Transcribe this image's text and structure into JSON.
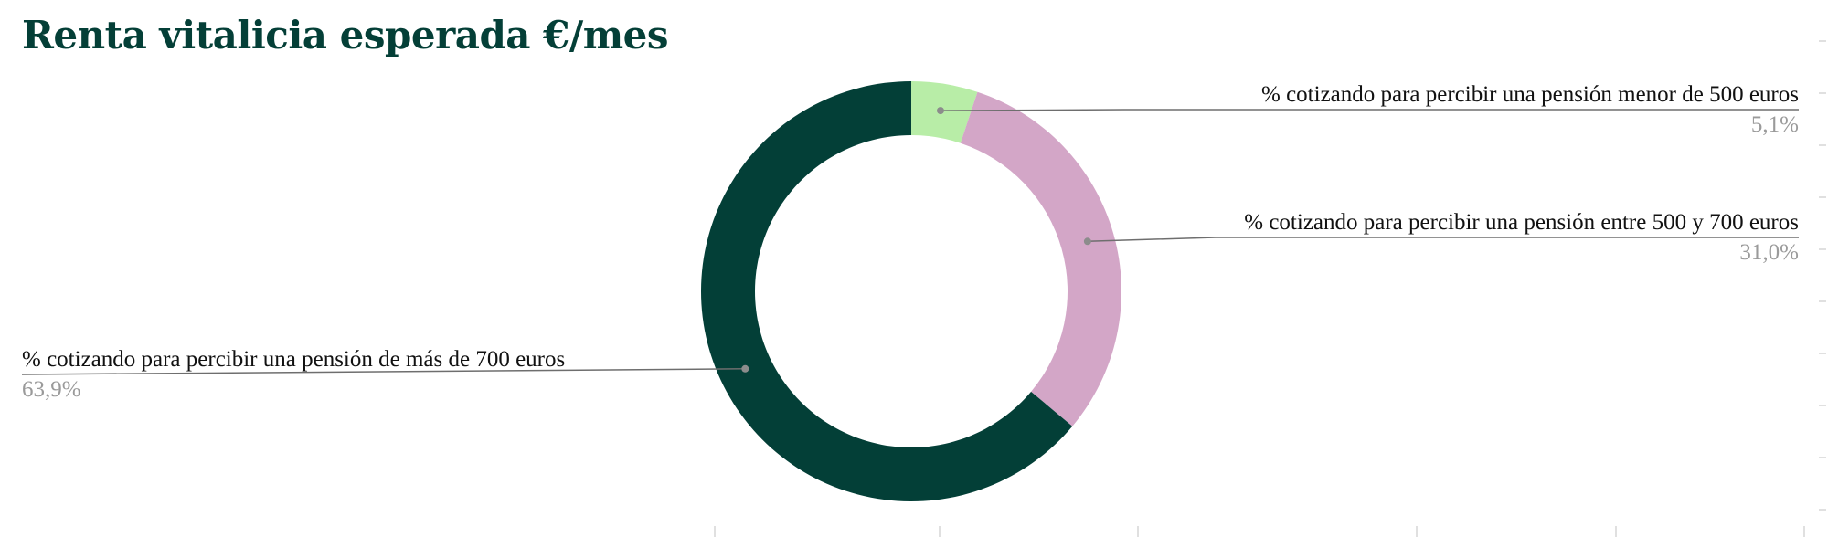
{
  "chart_data": {
    "type": "pie",
    "style": "donut",
    "title": "Renta vitalicia esperada €/mes",
    "colors": {
      "title": "#043f37"
    },
    "slices": [
      {
        "label": "% cotizando para percibir una pensión menor de 500 euros",
        "value": 5.1,
        "value_label": "5,1%",
        "color": "#b8eda7",
        "label_side": "right"
      },
      {
        "label": "% cotizando para percibir una pensión entre 500 y 700 euros",
        "value": 31.0,
        "value_label": "31,0%",
        "color": "#d3a6c7",
        "label_side": "right"
      },
      {
        "label": "% cotizando para percibir una pensión de más de 700 euros",
        "value": 63.9,
        "value_label": "63,9%",
        "color": "#033f37",
        "label_side": "left"
      }
    ]
  }
}
